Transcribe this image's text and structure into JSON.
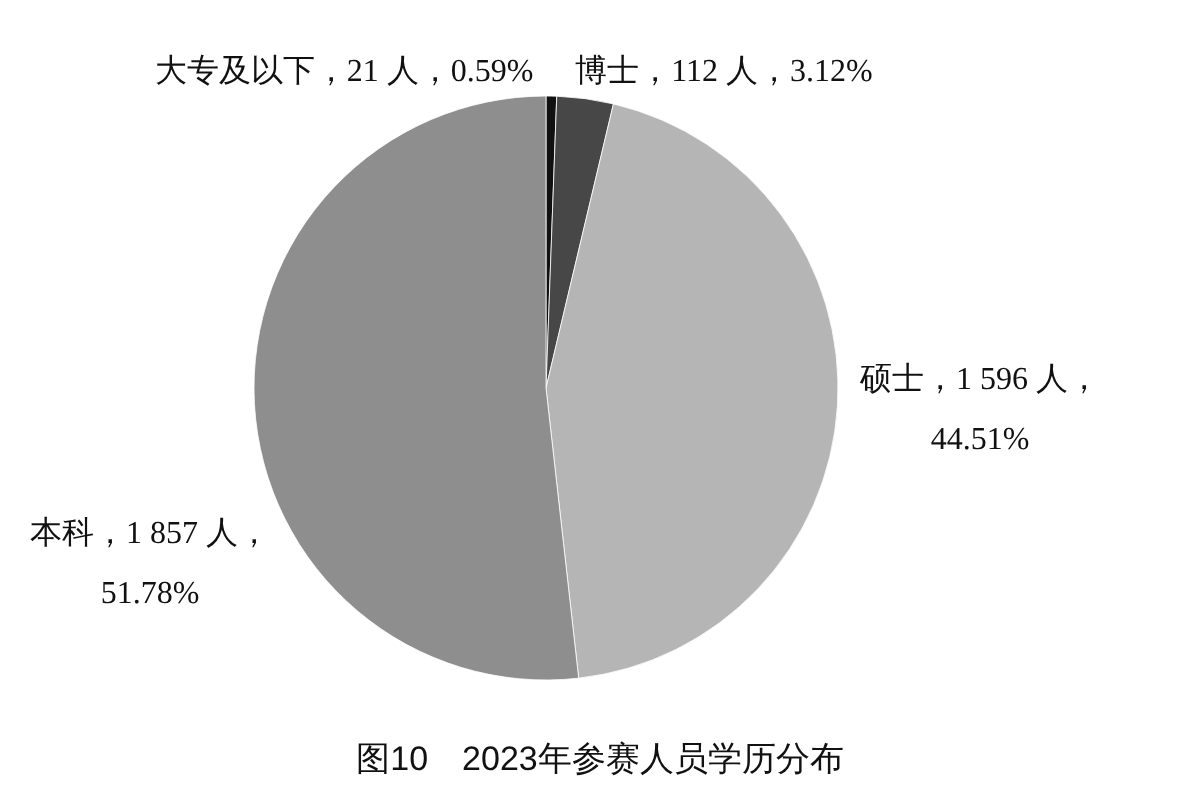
{
  "chart_data": {
    "type": "pie",
    "title": "图10　2023年参赛人员学历分布",
    "categories": [
      "大专及以下",
      "博士",
      "硕士",
      "本科"
    ],
    "values": [
      21,
      112,
      1596,
      1857
    ],
    "colors": [
      "#111111",
      "#474747",
      "#b5b5b5",
      "#8e8e8e"
    ],
    "value_labels": [
      "21 人，0.59%",
      "112 人，3.12%",
      "1 596 人，44.51%",
      "1 857 人，51.78%"
    ],
    "legend": false
  }
}
